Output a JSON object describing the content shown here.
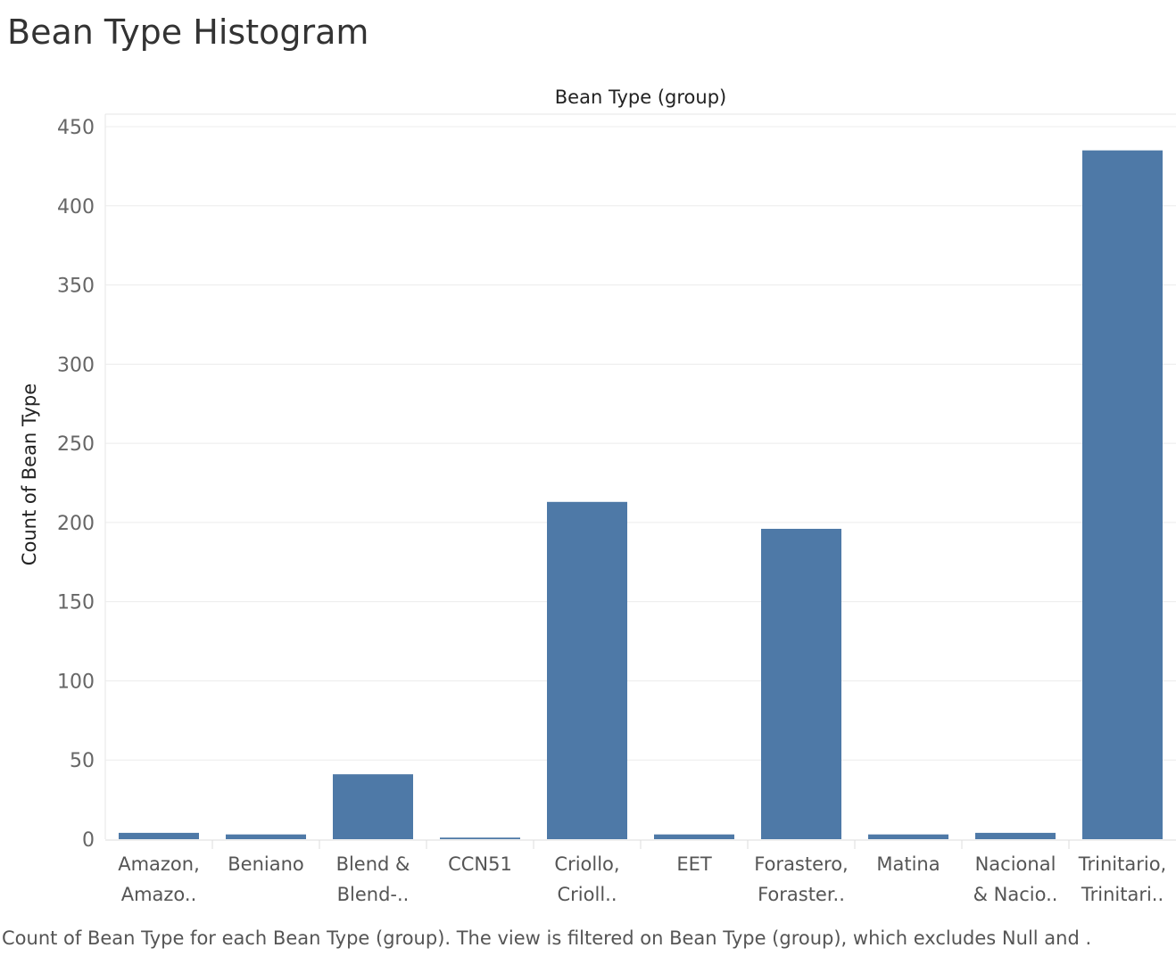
{
  "title": "Bean Type Histogram",
  "caption": "Count of Bean Type for each Bean Type (group). The view is filtered on Bean Type (group), which excludes Null and  .",
  "bar_color": "#4e79a7",
  "chart_data": {
    "type": "bar",
    "header_label": "Bean Type (group)",
    "ylabel": "Count of Bean Type",
    "ylim": [
      0,
      450
    ],
    "y_ticks": [
      0,
      50,
      100,
      150,
      200,
      250,
      300,
      350,
      400,
      450
    ],
    "grid": true,
    "categories": [
      [
        "Amazon,",
        "Amazo.."
      ],
      [
        "Beniano"
      ],
      [
        "Blend &",
        "Blend-.."
      ],
      [
        "CCN51"
      ],
      [
        "Criollo,",
        "Crioll.."
      ],
      [
        "EET"
      ],
      [
        "Forastero,",
        "Foraster.."
      ],
      [
        "Matina"
      ],
      [
        "Nacional",
        "& Nacio.."
      ],
      [
        "Trinitario,",
        "Trinitari.."
      ]
    ],
    "values": [
      4,
      3,
      41,
      1,
      213,
      3,
      196,
      3,
      4,
      435
    ]
  }
}
